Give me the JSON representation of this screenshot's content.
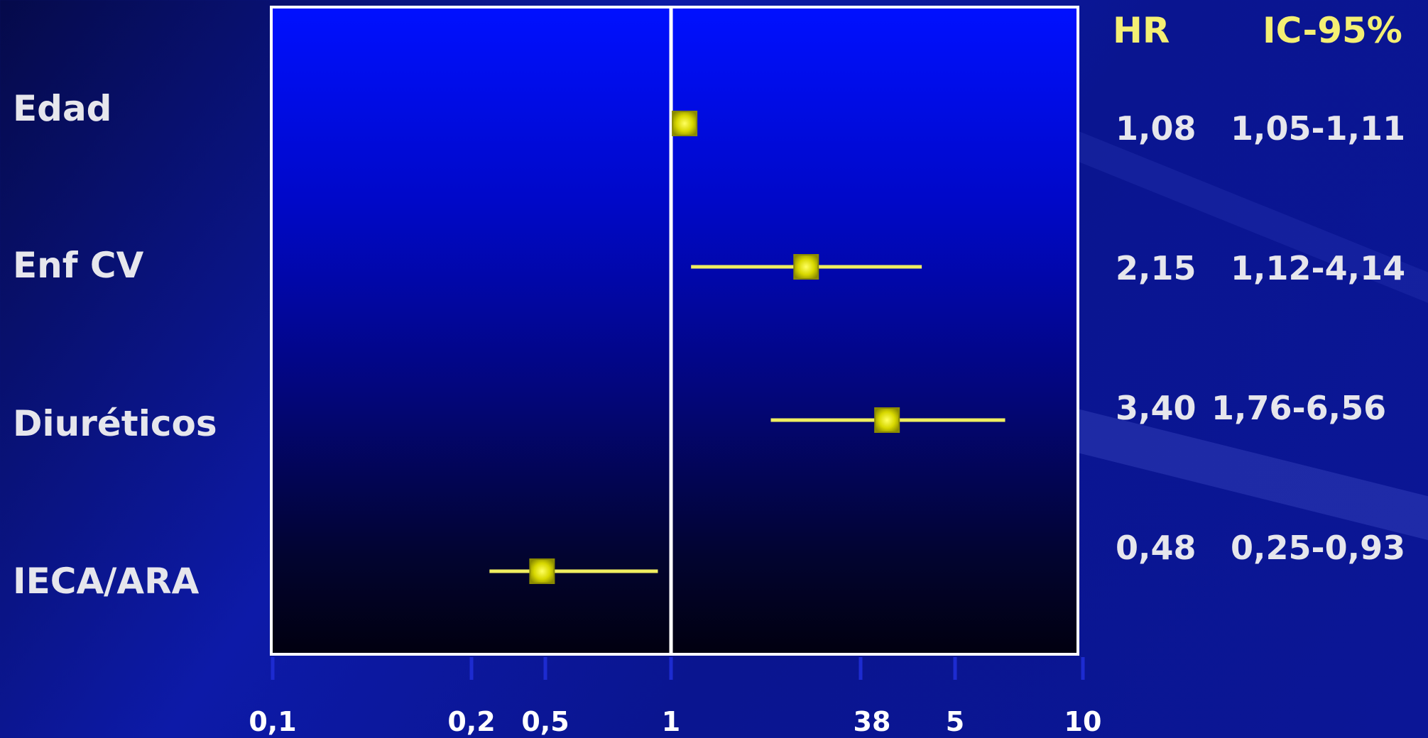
{
  "chart_data": {
    "type": "forest",
    "header": {
      "hr_label": "HR",
      "ci_label": "IC-95%"
    },
    "reference_value": 1,
    "x_ticks": [
      "0,1",
      "0,2",
      "0,5",
      "1",
      "38",
      "5",
      "10"
    ],
    "rows": [
      {
        "label": "Edad",
        "hr": 1.08,
        "ci_low": 1.05,
        "ci_high": 1.11,
        "hr_text": "1,08",
        "ci_text": "1,05-1,11"
      },
      {
        "label": "Enf CV",
        "hr": 2.15,
        "ci_low": 1.12,
        "ci_high": 4.14,
        "hr_text": "2,15",
        "ci_text": "1,12-4,14"
      },
      {
        "label": "Diuréticos",
        "hr": 3.4,
        "ci_low": 1.76,
        "ci_high": 6.56,
        "hr_text": "3,40",
        "ci_text": "1,76-6,56"
      },
      {
        "label": "IECA/ARA",
        "hr": 0.48,
        "ci_low": 0.25,
        "ci_high": 0.93,
        "hr_text": "0,48",
        "ci_text": "0,25-0,93"
      }
    ],
    "colors": {
      "marker": "#d8d800",
      "ci_line": "#f0ee60",
      "header": "#f4ef73",
      "text": "#e6e6ec"
    }
  }
}
